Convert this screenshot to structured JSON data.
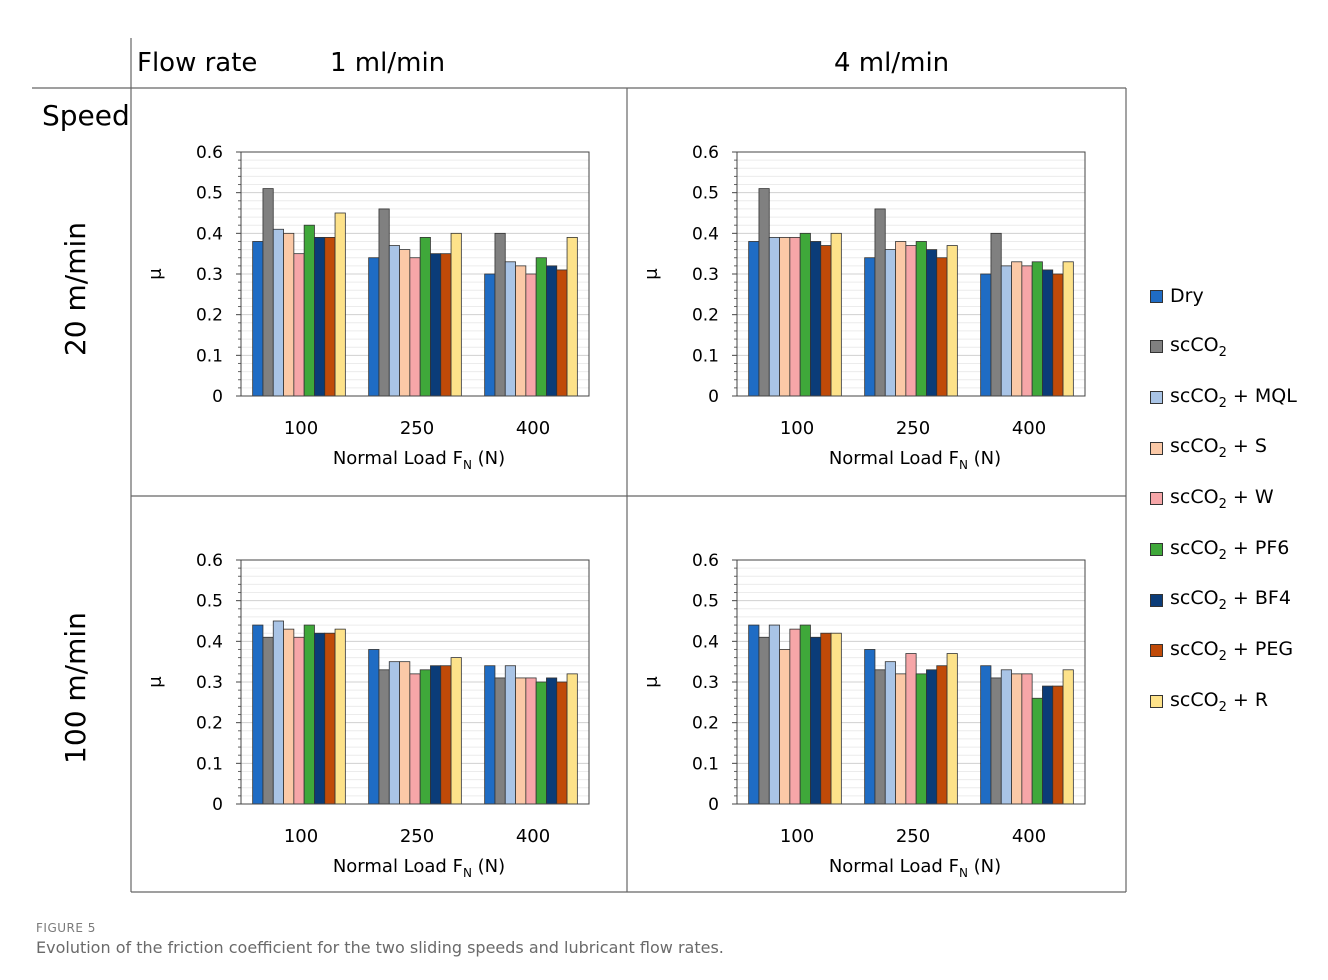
{
  "header": {
    "row_title": "Speed",
    "col_title": "Flow rate",
    "col_labels": [
      "1 ml/min",
      "4 ml/min"
    ],
    "row_labels": [
      "20 m/min",
      "100 m/min"
    ]
  },
  "legend": [
    {
      "base": "Dry",
      "sub": "",
      "rest": "",
      "color": "#1f6cc4"
    },
    {
      "base": "scCO",
      "sub": "2",
      "rest": "",
      "color": "#808080"
    },
    {
      "base": "scCO",
      "sub": "2",
      "rest": " + MQL",
      "color": "#a9c4e6"
    },
    {
      "base": "scCO",
      "sub": "2",
      "rest": " + S",
      "color": "#fbc9a7"
    },
    {
      "base": "scCO",
      "sub": "2",
      "rest": " + W",
      "color": "#f6a6a8"
    },
    {
      "base": "scCO",
      "sub": "2",
      "rest": " + PF6",
      "color": "#3fa83a"
    },
    {
      "base": "scCO",
      "sub": "2",
      "rest": " + BF4",
      "color": "#0b3c78"
    },
    {
      "base": "scCO",
      "sub": "2",
      "rest": " + PEG",
      "color": "#c04a08"
    },
    {
      "base": "scCO",
      "sub": "2",
      "rest": " + R",
      "color": "#fde28a"
    }
  ],
  "chart_data": [
    {
      "type": "bar",
      "panel": "20 m/min, 1 ml/min",
      "categories": [
        "100",
        "250",
        "400"
      ],
      "xlabel": {
        "base": "Normal Load F",
        "sub": "N",
        "rest": " (N)"
      },
      "ylabel": "μ",
      "ylim": [
        0,
        0.6
      ],
      "yticks": [
        "0",
        "0.1",
        "0.2",
        "0.3",
        "0.4",
        "0.5",
        "0.6"
      ],
      "series": [
        {
          "name": "Dry",
          "values": [
            0.38,
            0.34,
            0.3
          ]
        },
        {
          "name": "scCO2",
          "values": [
            0.51,
            0.46,
            0.4
          ]
        },
        {
          "name": "scCO2 + MQL",
          "values": [
            0.41,
            0.37,
            0.33
          ]
        },
        {
          "name": "scCO2 + S",
          "values": [
            0.4,
            0.36,
            0.32
          ]
        },
        {
          "name": "scCO2 + W",
          "values": [
            0.35,
            0.34,
            0.3
          ]
        },
        {
          "name": "scCO2 + PF6",
          "values": [
            0.42,
            0.39,
            0.34
          ]
        },
        {
          "name": "scCO2 + BF4",
          "values": [
            0.39,
            0.35,
            0.32
          ]
        },
        {
          "name": "scCO2 + PEG",
          "values": [
            0.39,
            0.35,
            0.31
          ]
        },
        {
          "name": "scCO2 + R",
          "values": [
            0.45,
            0.4,
            0.39
          ]
        }
      ]
    },
    {
      "type": "bar",
      "panel": "20 m/min, 4 ml/min",
      "categories": [
        "100",
        "250",
        "400"
      ],
      "xlabel": {
        "base": "Normal Load F",
        "sub": "N",
        "rest": " (N)"
      },
      "ylabel": "μ",
      "ylim": [
        0,
        0.6
      ],
      "yticks": [
        "0",
        "0.1",
        "0.2",
        "0.3",
        "0.4",
        "0.5",
        "0.6"
      ],
      "series": [
        {
          "name": "Dry",
          "values": [
            0.38,
            0.34,
            0.3
          ]
        },
        {
          "name": "scCO2",
          "values": [
            0.51,
            0.46,
            0.4
          ]
        },
        {
          "name": "scCO2 + MQL",
          "values": [
            0.39,
            0.36,
            0.32
          ]
        },
        {
          "name": "scCO2 + S",
          "values": [
            0.39,
            0.38,
            0.33
          ]
        },
        {
          "name": "scCO2 + W",
          "values": [
            0.39,
            0.37,
            0.32
          ]
        },
        {
          "name": "scCO2 + PF6",
          "values": [
            0.4,
            0.38,
            0.33
          ]
        },
        {
          "name": "scCO2 + BF4",
          "values": [
            0.38,
            0.36,
            0.31
          ]
        },
        {
          "name": "scCO2 + PEG",
          "values": [
            0.37,
            0.34,
            0.3
          ]
        },
        {
          "name": "scCO2 + R",
          "values": [
            0.4,
            0.37,
            0.33
          ]
        }
      ]
    },
    {
      "type": "bar",
      "panel": "100 m/min, 1 ml/min",
      "categories": [
        "100",
        "250",
        "400"
      ],
      "xlabel": {
        "base": "Normal Load F",
        "sub": "N",
        "rest": " (N)"
      },
      "ylabel": "μ",
      "ylim": [
        0,
        0.6
      ],
      "yticks": [
        "0",
        "0.1",
        "0.2",
        "0.3",
        "0.4",
        "0.5",
        "0.6"
      ],
      "series": [
        {
          "name": "Dry",
          "values": [
            0.44,
            0.38,
            0.34
          ]
        },
        {
          "name": "scCO2",
          "values": [
            0.41,
            0.33,
            0.31
          ]
        },
        {
          "name": "scCO2 + MQL",
          "values": [
            0.45,
            0.35,
            0.34
          ]
        },
        {
          "name": "scCO2 + S",
          "values": [
            0.43,
            0.35,
            0.31
          ]
        },
        {
          "name": "scCO2 + W",
          "values": [
            0.41,
            0.32,
            0.31
          ]
        },
        {
          "name": "scCO2 + PF6",
          "values": [
            0.44,
            0.33,
            0.3
          ]
        },
        {
          "name": "scCO2 + BF4",
          "values": [
            0.42,
            0.34,
            0.31
          ]
        },
        {
          "name": "scCO2 + PEG",
          "values": [
            0.42,
            0.34,
            0.3
          ]
        },
        {
          "name": "scCO2 + R",
          "values": [
            0.43,
            0.36,
            0.32
          ]
        }
      ]
    },
    {
      "type": "bar",
      "panel": "100 m/min, 4 ml/min",
      "categories": [
        "100",
        "250",
        "400"
      ],
      "xlabel": {
        "base": "Normal Load F",
        "sub": "N",
        "rest": " (N)"
      },
      "ylabel": "μ",
      "ylim": [
        0,
        0.6
      ],
      "yticks": [
        "0",
        "0.1",
        "0.2",
        "0.3",
        "0.4",
        "0.5",
        "0.6"
      ],
      "series": [
        {
          "name": "Dry",
          "values": [
            0.44,
            0.38,
            0.34
          ]
        },
        {
          "name": "scCO2",
          "values": [
            0.41,
            0.33,
            0.31
          ]
        },
        {
          "name": "scCO2 + MQL",
          "values": [
            0.44,
            0.35,
            0.33
          ]
        },
        {
          "name": "scCO2 + S",
          "values": [
            0.38,
            0.32,
            0.32
          ]
        },
        {
          "name": "scCO2 + W",
          "values": [
            0.43,
            0.37,
            0.32
          ]
        },
        {
          "name": "scCO2 + PF6",
          "values": [
            0.44,
            0.32,
            0.26
          ]
        },
        {
          "name": "scCO2 + BF4",
          "values": [
            0.41,
            0.33,
            0.29
          ]
        },
        {
          "name": "scCO2 + PEG",
          "values": [
            0.42,
            0.34,
            0.29
          ]
        },
        {
          "name": "scCO2 + R",
          "values": [
            0.42,
            0.37,
            0.33
          ]
        }
      ]
    }
  ],
  "caption": {
    "label": "FIGURE 5",
    "text": "Evolution of the friction coefficient for the two sliding speeds and lubricant flow rates."
  }
}
